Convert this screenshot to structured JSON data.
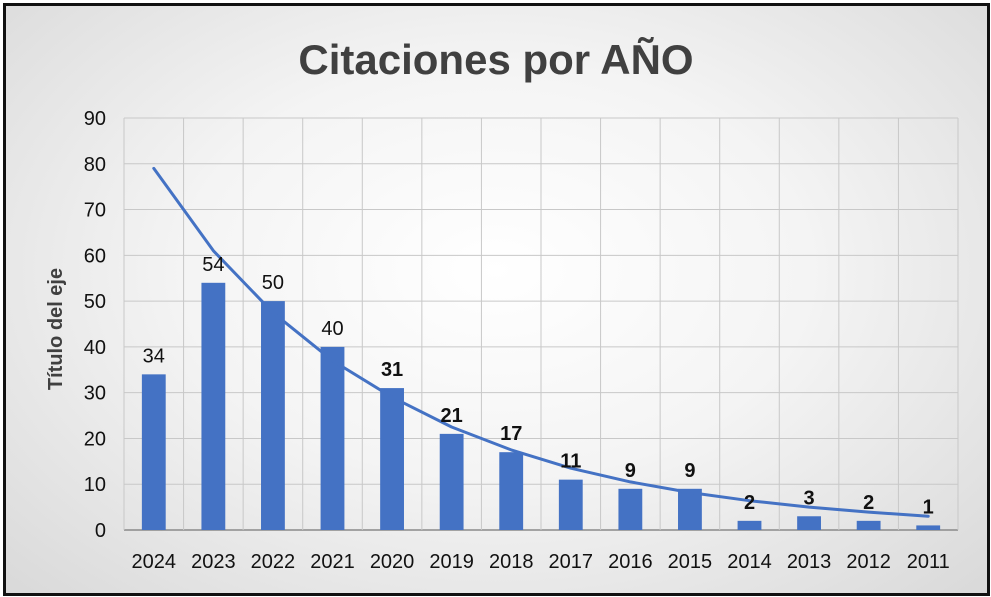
{
  "chart_data": {
    "type": "bar",
    "title": "Citaciones por AÑO",
    "xlabel": "",
    "ylabel": "Título del eje",
    "categories": [
      "2024",
      "2023",
      "2022",
      "2021",
      "2020",
      "2019",
      "2018",
      "2017",
      "2016",
      "2015",
      "2014",
      "2013",
      "2012",
      "2011"
    ],
    "series": [
      {
        "values": [
          34,
          54,
          50,
          40,
          31,
          21,
          17,
          11,
          9,
          9,
          2,
          3,
          2,
          1
        ],
        "labels": [
          "34",
          "54",
          "50",
          "40",
          "31",
          "21",
          "17",
          "11",
          "9",
          "9",
          "2",
          "3",
          "2",
          "1"
        ],
        "label_bold": [
          false,
          false,
          false,
          false,
          true,
          true,
          true,
          true,
          true,
          true,
          true,
          true,
          true,
          true
        ],
        "color": "#4472c4"
      }
    ],
    "trendline": {
      "type": "exponential",
      "values": [
        79,
        61,
        47.5,
        37,
        29,
        22.5,
        17.5,
        13.5,
        10.5,
        8.2,
        6.4,
        5,
        3.9,
        3
      ],
      "color": "#4472c4"
    },
    "ylim": [
      0,
      90
    ],
    "yticks": [
      "0",
      "10",
      "20",
      "30",
      "40",
      "50",
      "60",
      "70",
      "80",
      "90"
    ],
    "grid": true,
    "legend": "none"
  }
}
